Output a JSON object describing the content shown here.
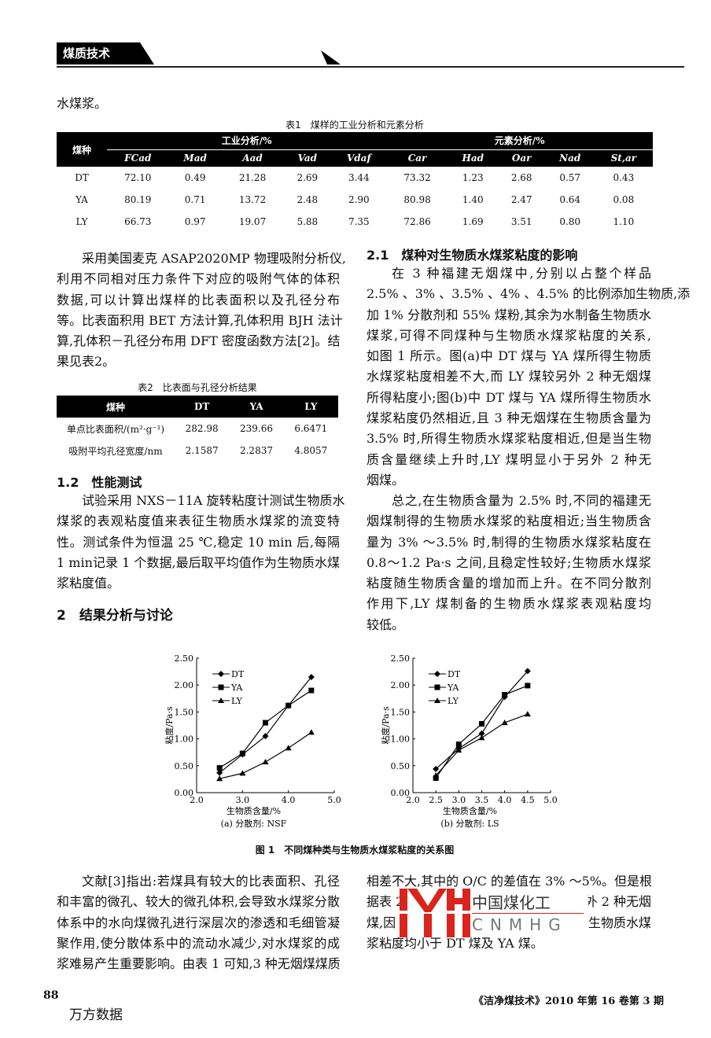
{
  "header": {
    "section": "煤质技术"
  },
  "top_line": "水煤浆。",
  "table1": {
    "caption": "表1　煤样的工业分析和元素分析",
    "row_header": "煤种",
    "group1": "工业分析/%",
    "group2": "元素分析/%",
    "columns": [
      "FCad",
      "Mad",
      "Aad",
      "Vad",
      "Vdaf",
      "Car",
      "Had",
      "Oar",
      "Nad",
      "St,ar"
    ],
    "rows": [
      [
        "DT",
        "72.10",
        "0.49",
        "21.28",
        "2.69",
        "3.44",
        "73.32",
        "1.23",
        "2.68",
        "0.57",
        "0.43"
      ],
      [
        "YA",
        "80.19",
        "0.71",
        "13.72",
        "2.48",
        "2.90",
        "80.98",
        "1.40",
        "2.47",
        "0.64",
        "0.08"
      ],
      [
        "LY",
        "66.73",
        "0.97",
        "19.07",
        "5.88",
        "7.35",
        "72.86",
        "1.69",
        "3.51",
        "0.80",
        "1.10"
      ]
    ]
  },
  "left_p1": [
    "采用美国麦克 ASAP2020MP 物理吸附分析仪,",
    "利用不同相对压力条件下对应的吸附气体的体积",
    "数据,可以计算出煤样的比表面积以及孔径分布",
    "等。比表面积用 BET 方法计算,孔体积用 BJH 法计",
    "算,孔体积－孔径分布用 DFT 密度函数方法[2]。结",
    "果见表2。"
  ],
  "table2": {
    "caption": "表2　比表面与孔径分析结果",
    "headers": [
      "煤种",
      "DT",
      "YA",
      "LY"
    ],
    "rows": [
      [
        "单点比表面积/(m²·g⁻¹)",
        "282.98",
        "239.66",
        "6.6471"
      ],
      [
        "吸附平均孔径宽度/nm",
        "2.1587",
        "2.2837",
        "4.8057"
      ]
    ]
  },
  "sec_1_2": "1.2　性能测试",
  "left_p2": [
    "试验采用 NXS－11A 旋转粘度计测试生物质水",
    "煤浆的表观粘度值来表征生物质水煤浆的流变特",
    "性。测试条件为恒温 25 ℃,稳定 10 min 后,每隔",
    "1 min记录 1 个数据,最后取平均值作为生物质水煤",
    "浆粘度值。"
  ],
  "sec_2": "2　结果分析与讨论",
  "sec_2_1": "2.1　煤种对生物质水煤浆粘度的影响",
  "right_p1": [
    "在 3 种福建无烟煤中,分别以占整个样品",
    "2.5% 、3% 、3.5% 、4% 、4.5% 的比例添加生物质,添",
    "加 1% 分散剂和 55% 煤粉,其余为水制备生物质水",
    "煤浆,可得不同煤种与生物质水煤浆粘度的关系,",
    "如图 1 所示。图(a)中 DT 煤与 YA 煤所得生物质",
    "水煤浆粘度相差不大,而 LY 煤较另外 2 种无烟煤",
    "所得粘度小;图(b)中 DT 煤与 YA 煤所得生物质水",
    "煤浆粘度仍然相近,且 3 种无烟煤在生物质含量为",
    "3.5% 时,所得生物质水煤浆粘度相近,但是当生物",
    "质含量继续上升时,LY 煤明显小于另外 2 种无",
    "烟煤。"
  ],
  "right_p2": [
    "总之,在生物质含量为 2.5% 时,不同的福建无",
    "烟煤制得的生物质水煤浆的粘度相近;当生物质含",
    "量为 3% ～3.5% 时,制得的生物质水煤浆粘度在",
    "0.8～1.2 Pa·s 之间,且稳定性较好;生物质水煤浆",
    "粘度随生物质含量的增加而上升。在不同分散剂",
    "作用下,LY 煤制备的生物质水煤浆表观粘度均",
    "较低。"
  ],
  "figure_caption": "图 1　不同煤种类与生物质水煤浆粘度的关系图",
  "chart_data": [
    {
      "type": "line",
      "subtitle": "(a) 分散剂: NSF",
      "xlabel": "生物质含量/%",
      "ylabel": "粘度/Pa·s",
      "xlim": [
        2.0,
        5.0
      ],
      "ylim": [
        0,
        2.5
      ],
      "xticks": [
        "2.0",
        "3.0",
        "4.0",
        "5.0"
      ],
      "yticks": [
        "0.00",
        "0.50",
        "1.00",
        "1.50",
        "2.00",
        "2.50"
      ],
      "legend": "top-left",
      "grid": false,
      "x": [
        2.5,
        3.0,
        3.5,
        4.0,
        4.5
      ],
      "series": [
        {
          "name": "DT",
          "marker": "diamond",
          "values": [
            0.37,
            0.71,
            1.05,
            1.62,
            2.15
          ]
        },
        {
          "name": "YA",
          "marker": "square",
          "values": [
            0.46,
            0.73,
            1.3,
            1.62,
            1.9
          ]
        },
        {
          "name": "LY",
          "marker": "triangle",
          "values": [
            0.26,
            0.36,
            0.57,
            0.83,
            1.12
          ]
        }
      ]
    },
    {
      "type": "line",
      "subtitle": "(b) 分散剂: LS",
      "xlabel": "生物质含量/%",
      "ylabel": "粘度/Pa·s",
      "xlim": [
        2.0,
        5.0
      ],
      "ylim": [
        0,
        2.5
      ],
      "xticks": [
        "2.0",
        "2.5",
        "3.0",
        "3.5",
        "4.0",
        "4.5",
        "5.0"
      ],
      "yticks": [
        "0.00",
        "0.50",
        "1.00",
        "1.50",
        "2.00",
        "2.50"
      ],
      "legend": "top-left",
      "grid": false,
      "x": [
        2.5,
        3.0,
        3.5,
        4.0,
        4.5
      ],
      "series": [
        {
          "name": "DT",
          "marker": "diamond",
          "values": [
            0.44,
            0.82,
            1.1,
            1.78,
            2.26
          ]
        },
        {
          "name": "YA",
          "marker": "square",
          "values": [
            0.27,
            0.9,
            1.28,
            1.82,
            1.99
          ]
        },
        {
          "name": "LY",
          "marker": "triangle",
          "values": [
            0.32,
            0.79,
            1.02,
            1.3,
            1.46
          ]
        }
      ]
    }
  ],
  "left_p3": [
    "文献[3]指出:若煤具有较大的比表面积、孔径",
    "和丰富的微孔、较大的微孔体积,会导致水煤浆分散",
    "体系中的水向煤微孔进行深层次的渗透和毛细管凝",
    "聚作用,使分散体系中的流动水减少,对水煤浆的成",
    "浆难易产生重要影响。由表 1 可知,3 种无烟煤煤质"
  ],
  "right_p3": {
    "l1": "相差不大,其中的 O/C 的差值在 3% ～5%。但是根",
    "l2a": "据表 2",
    "l2b": "于另外 2 种无烟",
    "l3a": "煤,因",
    "l3b": "制备的生物质水煤",
    "l4": "浆粘度均小于 DT 煤及 YA 煤。"
  },
  "watermark": {
    "cn": "中国煤化工",
    "en": "CNMHG",
    "color": "#d9251d"
  },
  "footer": {
    "page": "88",
    "journal": "《洁净煤技术》2010 年第 16 卷第 3 期",
    "source": "万方数据"
  }
}
